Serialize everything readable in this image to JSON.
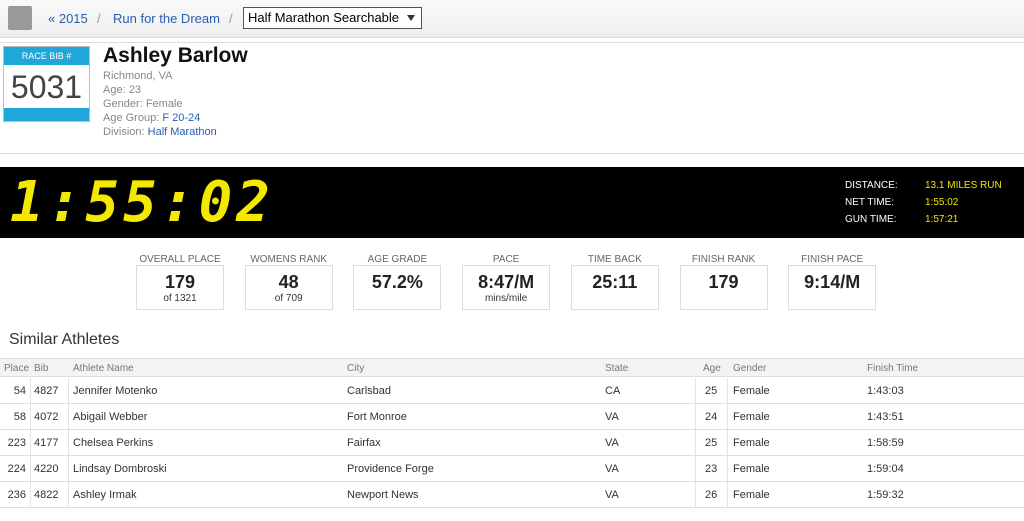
{
  "breadcrumb": {
    "year_link": "« 2015",
    "separator": "/",
    "event_link": "Run for the Dream",
    "race_select": "Half Marathon Searchable"
  },
  "athlete": {
    "bib_label": "RACE BIB #",
    "bib": "5031",
    "name": "Ashley Barlow",
    "location": "Richmond, VA",
    "details": [
      {
        "label": "Age:",
        "value": "23"
      },
      {
        "label": "Gender:",
        "value": "Female"
      },
      {
        "label": "Age Group:",
        "value": "F 20-24"
      },
      {
        "label": "Division:",
        "value": "Half Marathon"
      }
    ]
  },
  "clock": {
    "time": "1:55:02",
    "details": [
      {
        "label": "DISTANCE:",
        "value": "13.1 MILES RUN"
      },
      {
        "label": "NET TIME:",
        "value": "1:55:02"
      },
      {
        "label": "GUN TIME:",
        "value": "1:57:21"
      }
    ]
  },
  "stats": [
    {
      "label": "OVERALL PLACE",
      "value": "179",
      "sub": "of 1321"
    },
    {
      "label": "WOMENS RANK",
      "value": "48",
      "sub": "of 709"
    },
    {
      "label": "AGE GRADE",
      "value": "57.2%"
    },
    {
      "label": "PACE",
      "value": "8:47/M",
      "sub": "mins/mile"
    },
    {
      "label": "TIME BACK",
      "value": "25:11"
    },
    {
      "label": "FINISH RANK",
      "value": "179"
    },
    {
      "label": "FINISH PACE",
      "value": "9:14/M"
    }
  ],
  "similar": {
    "title": "Similar Athletes",
    "columns": [
      "Place",
      "Bib",
      "Athlete Name",
      "City",
      "State",
      "Age",
      "Gender",
      "Finish Time"
    ],
    "rows": [
      [
        54,
        4827,
        "Jennifer Motenko",
        "Carlsbad",
        "CA",
        25,
        "Female",
        "1:43:03"
      ],
      [
        58,
        4072,
        "Abigail Webber",
        "Fort Monroe",
        "VA",
        24,
        "Female",
        "1:43:51"
      ],
      [
        223,
        4177,
        "Chelsea Perkins",
        "Fairfax",
        "VA",
        25,
        "Female",
        "1:58:59"
      ],
      [
        224,
        4220,
        "Lindsay Dombroski",
        "Providence Forge",
        "VA",
        23,
        "Female",
        "1:59:04"
      ],
      [
        236,
        4822,
        "Ashley Irmak",
        "Newport News",
        "VA",
        26,
        "Female",
        "1:59:32"
      ]
    ]
  }
}
